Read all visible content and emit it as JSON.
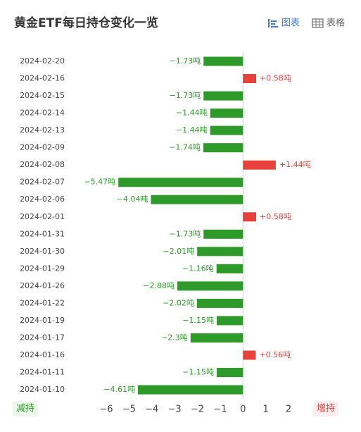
{
  "chart_data": {
    "type": "bar",
    "orientation": "horizontal",
    "title": "黄金ETF每日持仓变化一览",
    "view_buttons": [
      "图表",
      "表格"
    ],
    "left_label": "减持",
    "right_label": "增持",
    "categories": [
      "2024-02-20",
      "2024-02-16",
      "2024-02-15",
      "2024-02-14",
      "2024-02-13",
      "2024-02-09",
      "2024-02-08",
      "2024-02-07",
      "2024-02-06",
      "2024-02-01",
      "2024-01-31",
      "2024-01-30",
      "2024-01-29",
      "2024-01-26",
      "2024-01-22",
      "2024-01-19",
      "2024-01-17",
      "2024-01-16",
      "2024-01-11",
      "2024-01-10"
    ],
    "values": [
      -1.73,
      0.58,
      -1.73,
      -1.44,
      -1.44,
      -1.74,
      1.44,
      -5.47,
      -4.04,
      0.58,
      -1.73,
      -2.01,
      -1.16,
      -2.88,
      -2.02,
      -1.15,
      -2.3,
      0.56,
      -1.15,
      -4.61
    ],
    "value_labels": [
      "−1.73吨",
      "+0.58吨",
      "−1.73吨",
      "−1.44吨",
      "−1.44吨",
      "−1.74吨",
      "+1.44吨",
      "−5.47吨",
      "−4.04吨",
      "+0.58吨",
      "−1.73吨",
      "−2.01吨",
      "−1.16吨",
      "−2.88吨",
      "−2.02吨",
      "−1.15吨",
      "−2.3吨",
      "+0.56吨",
      "−1.15吨",
      "−4.61吨"
    ],
    "positive_color": "#e8403a",
    "negative_color": "#2e9a2a",
    "xlim": [
      -6,
      2
    ],
    "xticks": [
      {
        "value": -6,
        "label": "−6"
      },
      {
        "value": -5,
        "label": "−5"
      },
      {
        "value": -4,
        "label": "−4"
      },
      {
        "value": -3,
        "label": "−3"
      },
      {
        "value": -2,
        "label": "−2"
      },
      {
        "value": -1,
        "label": "−1"
      },
      0,
      1,
      2
    ],
    "grid": false
  }
}
